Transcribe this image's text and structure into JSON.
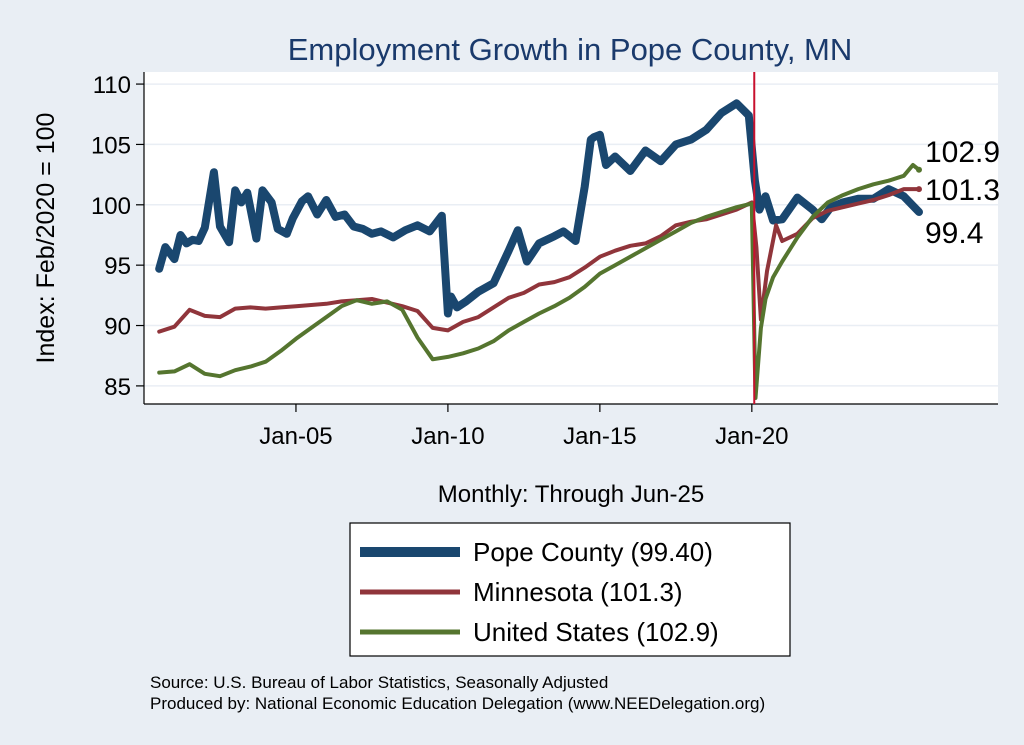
{
  "chart_data": {
    "type": "line",
    "title": "Employment Growth in Pope  County, MN",
    "ylabel": "Index: Feb/2020 = 100",
    "xlabel": "Monthly: Through Jun-25",
    "ylim": [
      83.5,
      111
    ],
    "xlim": [
      2000.0,
      2028.1
    ],
    "y_ticks": [
      85,
      90,
      95,
      100,
      105,
      110
    ],
    "x_ticks": [
      {
        "label": "Jan-05",
        "value": 2005.0
      },
      {
        "label": "Jan-10",
        "value": 2010.0
      },
      {
        "label": "Jan-15",
        "value": 2015.0
      },
      {
        "label": "Jan-20",
        "value": 2020.0
      }
    ],
    "reference_line": {
      "x": 2020.08,
      "color": "#c8102e",
      "meaning": "Feb-2020 base period"
    },
    "end_labels": [
      "102.9",
      "101.3",
      "99.4"
    ],
    "series": [
      {
        "name": "Pope  County",
        "legend_label": "Pope  County (99.40)",
        "final_value": 99.4,
        "color": "#1a476f",
        "x": [
          2000.5,
          2000.7,
          2001.0,
          2001.2,
          2001.4,
          2001.6,
          2001.8,
          2002.0,
          2002.3,
          2002.5,
          2002.8,
          2003.0,
          2003.2,
          2003.4,
          2003.7,
          2003.9,
          2004.2,
          2004.4,
          2004.7,
          2004.9,
          2005.2,
          2005.4,
          2005.7,
          2006.0,
          2006.3,
          2006.6,
          2006.9,
          2007.2,
          2007.5,
          2007.8,
          2008.2,
          2008.6,
          2009.0,
          2009.4,
          2009.8,
          2010.0,
          2010.1,
          2010.3,
          2010.6,
          2011.0,
          2011.5,
          2012.0,
          2012.3,
          2012.6,
          2013.0,
          2013.5,
          2013.8,
          2014.2,
          2014.5,
          2014.7,
          2014.8,
          2015.0,
          2015.2,
          2015.5,
          2016.0,
          2016.5,
          2017.0,
          2017.5,
          2018.0,
          2018.5,
          2019.0,
          2019.5,
          2019.9,
          2020.1,
          2020.25,
          2020.45,
          2020.7,
          2021.0,
          2021.5,
          2022.0,
          2022.3,
          2022.6,
          2023.0,
          2023.5,
          2024.0,
          2024.5,
          2025.0,
          2025.5
        ],
        "values": [
          94.7,
          96.5,
          95.5,
          97.5,
          96.8,
          97.1,
          97.0,
          98.1,
          102.7,
          98.2,
          96.9,
          101.2,
          100.2,
          101.0,
          97.2,
          101.2,
          100.2,
          98.0,
          97.6,
          98.9,
          100.3,
          100.7,
          99.2,
          100.4,
          99.0,
          99.2,
          98.2,
          98.0,
          97.6,
          97.8,
          97.3,
          97.9,
          98.3,
          97.8,
          99.1,
          91.0,
          92.4,
          91.5,
          92.0,
          92.8,
          93.5,
          96.2,
          97.9,
          95.3,
          96.8,
          97.4,
          97.8,
          97.0,
          101.5,
          105.4,
          105.6,
          105.8,
          103.3,
          104.0,
          102.8,
          104.5,
          103.6,
          105.0,
          105.4,
          106.2,
          107.6,
          108.4,
          107.4,
          102.0,
          99.6,
          100.7,
          98.7,
          98.8,
          100.6,
          99.6,
          98.8,
          99.8,
          100.2,
          100.5,
          100.5,
          101.3,
          100.7,
          99.4
        ]
      },
      {
        "name": "Minnesota",
        "legend_label": "Minnesota (101.3)",
        "final_value": 101.3,
        "color": "#90353b",
        "x": [
          2000.5,
          2001.0,
          2001.5,
          2002.0,
          2002.5,
          2003.0,
          2003.5,
          2004.0,
          2004.5,
          2005.0,
          2005.5,
          2006.0,
          2006.5,
          2007.0,
          2007.5,
          2008.0,
          2008.5,
          2009.0,
          2009.5,
          2010.0,
          2010.5,
          2011.0,
          2011.5,
          2012.0,
          2012.5,
          2013.0,
          2013.5,
          2014.0,
          2014.5,
          2015.0,
          2015.5,
          2016.0,
          2016.5,
          2017.0,
          2017.5,
          2018.0,
          2018.5,
          2019.0,
          2019.5,
          2020.0,
          2020.15,
          2020.3,
          2020.5,
          2020.8,
          2021.0,
          2021.5,
          2022.0,
          2022.5,
          2023.0,
          2023.5,
          2024.0,
          2024.5,
          2025.0,
          2025.5
        ],
        "values": [
          89.5,
          89.9,
          91.3,
          90.8,
          90.7,
          91.4,
          91.5,
          91.4,
          91.5,
          91.6,
          91.7,
          91.8,
          92.0,
          92.1,
          92.2,
          91.9,
          91.6,
          91.2,
          89.8,
          89.6,
          90.3,
          90.7,
          91.5,
          92.3,
          92.7,
          93.4,
          93.6,
          94.0,
          94.8,
          95.7,
          96.2,
          96.6,
          96.8,
          97.4,
          98.3,
          98.6,
          98.8,
          99.2,
          99.6,
          100.2,
          96.5,
          90.5,
          94.5,
          98.3,
          97.0,
          97.6,
          98.9,
          99.5,
          99.8,
          100.1,
          100.4,
          100.8,
          101.3,
          101.3
        ]
      },
      {
        "name": "United States",
        "legend_label": "United States (102.9)",
        "final_value": 102.9,
        "color": "#55752f",
        "x": [
          2000.5,
          2001.0,
          2001.5,
          2002.0,
          2002.5,
          2003.0,
          2003.5,
          2004.0,
          2004.5,
          2005.0,
          2005.5,
          2006.0,
          2006.5,
          2007.0,
          2007.5,
          2008.0,
          2008.5,
          2009.0,
          2009.5,
          2010.0,
          2010.5,
          2011.0,
          2011.5,
          2012.0,
          2012.5,
          2013.0,
          2013.5,
          2014.0,
          2014.5,
          2015.0,
          2015.5,
          2016.0,
          2016.5,
          2017.0,
          2017.5,
          2018.0,
          2018.5,
          2019.0,
          2019.5,
          2020.0,
          2020.12,
          2020.3,
          2020.45,
          2020.7,
          2021.0,
          2021.5,
          2022.0,
          2022.5,
          2023.0,
          2023.5,
          2024.0,
          2024.5,
          2025.0,
          2025.3,
          2025.5
        ],
        "values": [
          86.1,
          86.2,
          86.8,
          86.0,
          85.8,
          86.3,
          86.6,
          87.0,
          87.9,
          88.9,
          89.8,
          90.7,
          91.6,
          92.1,
          91.8,
          92.0,
          91.3,
          89.0,
          87.2,
          87.4,
          87.7,
          88.1,
          88.7,
          89.6,
          90.3,
          91.0,
          91.6,
          92.3,
          93.2,
          94.3,
          95.0,
          95.7,
          96.4,
          97.1,
          97.8,
          98.5,
          99.0,
          99.4,
          99.8,
          100.1,
          84.0,
          89.8,
          92.2,
          94.0,
          95.3,
          97.3,
          99.0,
          100.2,
          100.8,
          101.3,
          101.7,
          102.0,
          102.4,
          103.3,
          102.9
        ]
      }
    ],
    "source_lines": [
      "Source: U.S. Bureau of Labor Statistics, Seasonally Adjusted",
      "Produced by: National Economic Education Delegation (www.NEEDelegation.org)"
    ]
  }
}
